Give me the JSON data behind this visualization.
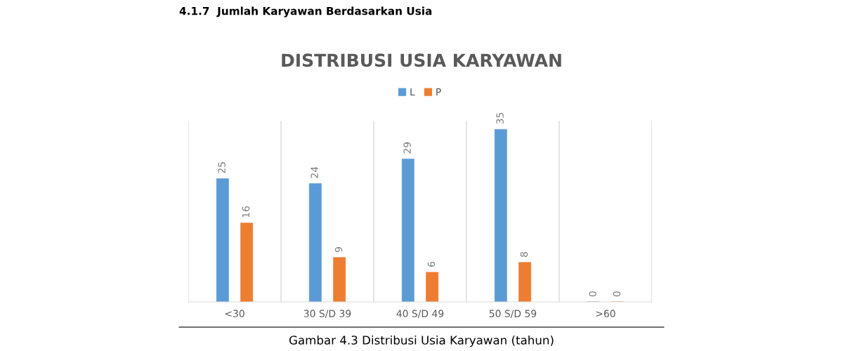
{
  "chart_data": {
    "type": "bar",
    "title": "DISTRIBUSI USIA KARYAWAN",
    "categories": [
      "<30",
      "30 S/D 39",
      "40 S/D 49",
      "50 S/D 59",
      ">60"
    ],
    "series": [
      {
        "name": "L",
        "color": "#5b9bd5",
        "values": [
          25,
          24,
          29,
          35,
          0
        ]
      },
      {
        "name": "P",
        "color": "#ed7d31",
        "values": [
          16,
          9,
          6,
          8,
          0
        ]
      }
    ],
    "data_labels": true,
    "legend": "top",
    "tick_labels": "x",
    "annotations": [
      "4.1.7  Jumlah Karyawan Berdasarkan Usia",
      "Gambar 4.3 Distribusi Usia Karyawan (tahun)"
    ]
  }
}
